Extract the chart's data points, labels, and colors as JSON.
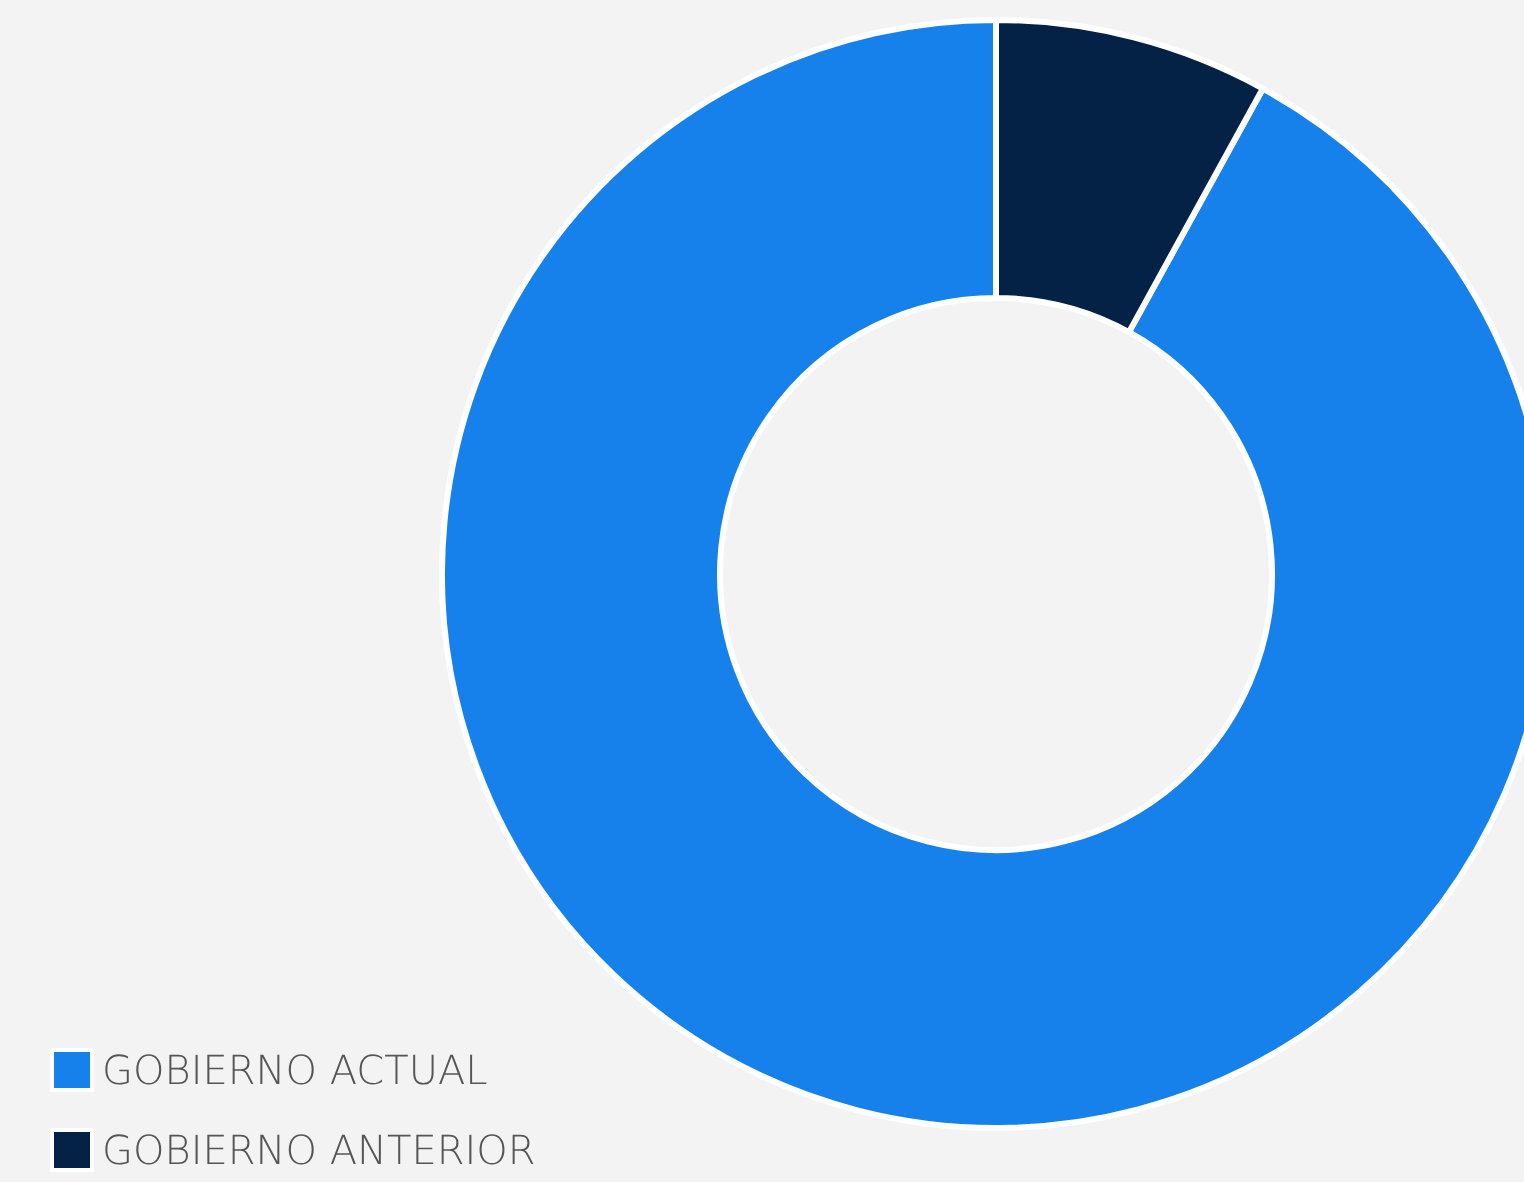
{
  "chart_data": {
    "type": "donut",
    "categories": [
      "GOBIERNO ACTUAL",
      "GOBIERNO ANTERIOR"
    ],
    "values": [
      92,
      8
    ],
    "colors": [
      "#1781eb",
      "#032246"
    ],
    "legend": "bottom left"
  }
}
